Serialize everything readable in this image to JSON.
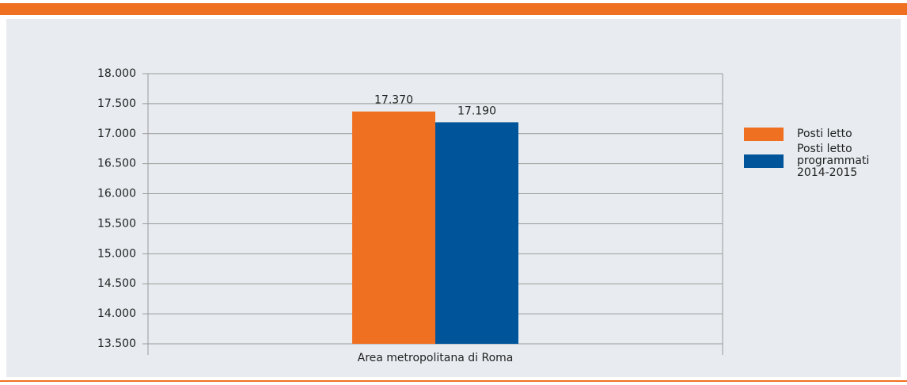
{
  "chart_data": {
    "type": "bar",
    "categories": [
      "Area metropolitana di Roma"
    ],
    "series": [
      {
        "name": "Posti letto",
        "color": "#f07022",
        "values": [
          17370
        ],
        "value_labels": [
          "17.370"
        ]
      },
      {
        "name": "Posti letto programmati 2014-2015",
        "color": "#00549a",
        "values": [
          17190
        ],
        "value_labels": [
          "17.190"
        ]
      }
    ],
    "ylim": [
      13500,
      18000
    ],
    "yticks": [
      {
        "value": 13500,
        "label": "13.500"
      },
      {
        "value": 14000,
        "label": "14.000"
      },
      {
        "value": 14500,
        "label": "14.500"
      },
      {
        "value": 15000,
        "label": "15.000"
      },
      {
        "value": 15500,
        "label": "15.500"
      },
      {
        "value": 16000,
        "label": "16.000"
      },
      {
        "value": 16500,
        "label": "16.500"
      },
      {
        "value": 17000,
        "label": "17.000"
      },
      {
        "value": 17500,
        "label": "17.500"
      },
      {
        "value": 18000,
        "label": "18.000"
      }
    ],
    "grid": true,
    "legend": "right"
  }
}
